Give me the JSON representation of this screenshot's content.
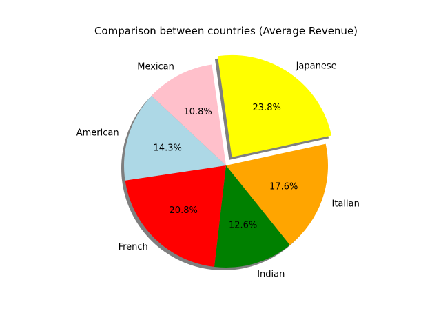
{
  "chart_data": {
    "type": "pie",
    "title": "Comparison between countries (Average Revenue)",
    "categories": [
      "Japanese",
      "Italian",
      "Indian",
      "French",
      "American",
      "Mexican"
    ],
    "values": [
      23.8,
      17.6,
      12.6,
      20.8,
      14.3,
      10.8
    ],
    "percent_labels": [
      "23.8%",
      "17.6%",
      "12.6%",
      "20.8%",
      "14.3%",
      "10.8%"
    ],
    "colors": [
      "#ffff00",
      "#ffa500",
      "#008000",
      "#ff0000",
      "#add8e6",
      "#ffc0cb"
    ],
    "exploded": [
      "Japanese"
    ],
    "shadow": true,
    "direction": "clockwise",
    "start_angle_deg": 98
  }
}
